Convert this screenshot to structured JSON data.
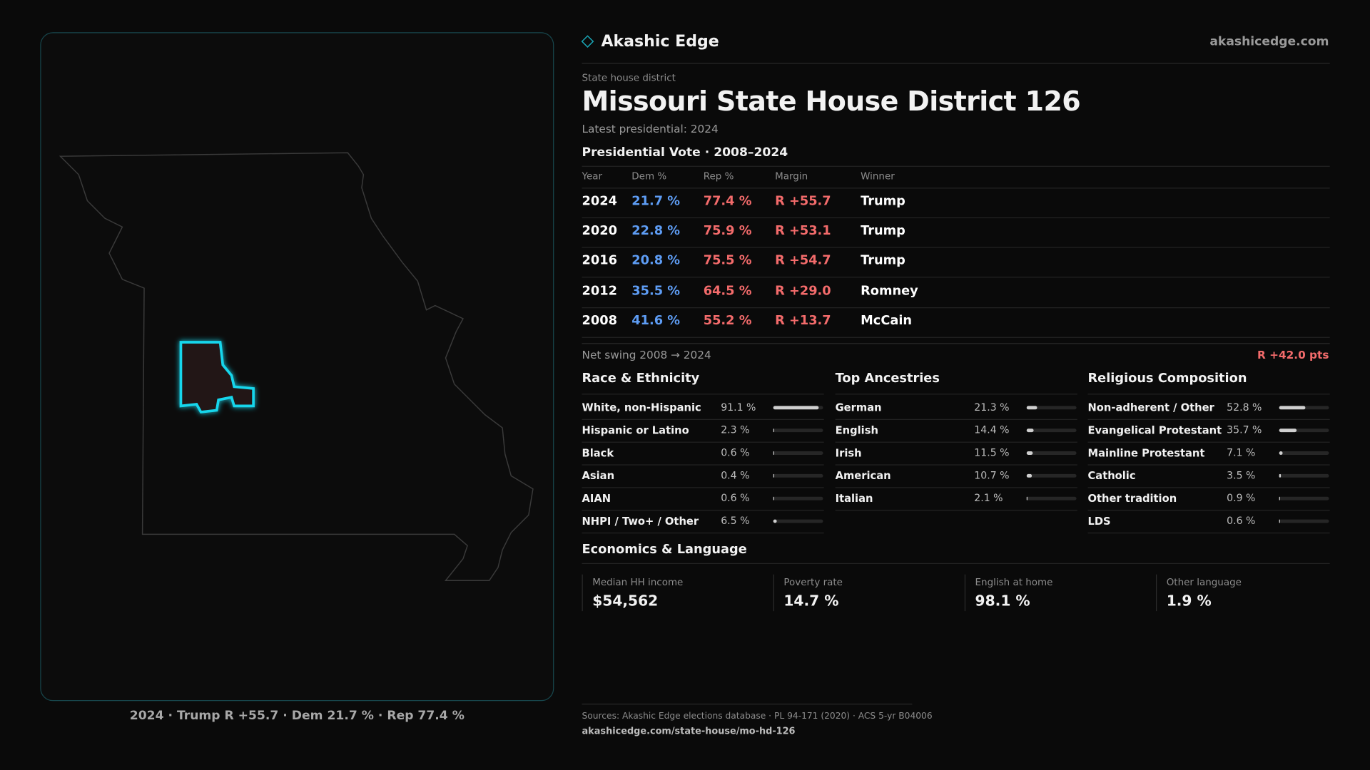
{
  "brand": {
    "name": "Akashic Edge",
    "site": "akashicedge.com"
  },
  "district": {
    "kicker": "State house district",
    "title": "Missouri State House District 126",
    "latest": "Latest presidential: 2024"
  },
  "presidential": {
    "title": "Presidential Vote · 2008–2024",
    "columns": [
      "Year",
      "Dem %",
      "Rep %",
      "Margin",
      "Winner"
    ],
    "rows": [
      [
        "2024",
        "21.7 %",
        "77.4 %",
        "R +55.7",
        "Trump"
      ],
      [
        "2020",
        "22.8 %",
        "75.9 %",
        "R +53.1",
        "Trump"
      ],
      [
        "2016",
        "20.8 %",
        "75.5 %",
        "R +54.7",
        "Trump"
      ],
      [
        "2012",
        "35.5 %",
        "64.5 %",
        "R +29.0",
        "Romney"
      ],
      [
        "2008",
        "41.6 %",
        "55.2 %",
        "R +13.7",
        "McCain"
      ]
    ],
    "swing_label": "Net swing 2008 → 2024",
    "swing_value": "R +42.0 pts"
  },
  "race": {
    "title": "Race & Ethnicity",
    "items": [
      {
        "name": "White, non-Hispanic",
        "value": 91.1,
        "label": "91.1 %"
      },
      {
        "name": "Hispanic or Latino",
        "value": 2.3,
        "label": "2.3 %"
      },
      {
        "name": "Black",
        "value": 0.6,
        "label": "0.6 %"
      },
      {
        "name": "Asian",
        "value": 0.4,
        "label": "0.4 %"
      },
      {
        "name": "AIAN",
        "value": 0.6,
        "label": "0.6 %"
      },
      {
        "name": "NHPI / Two+ / Other",
        "value": 6.5,
        "label": "6.5 %"
      }
    ]
  },
  "ancestry": {
    "title": "Top Ancestries",
    "items": [
      {
        "name": "German",
        "value": 21.3,
        "label": "21.3 %"
      },
      {
        "name": "English",
        "value": 14.4,
        "label": "14.4 %"
      },
      {
        "name": "Irish",
        "value": 11.5,
        "label": "11.5 %"
      },
      {
        "name": "American",
        "value": 10.7,
        "label": "10.7 %"
      },
      {
        "name": "Italian",
        "value": 2.1,
        "label": "2.1 %"
      }
    ]
  },
  "religion": {
    "title": "Religious Composition",
    "items": [
      {
        "name": "Non-adherent / Other",
        "value": 52.8,
        "label": "52.8 %"
      },
      {
        "name": "Evangelical Protestant",
        "value": 35.7,
        "label": "35.7 %"
      },
      {
        "name": "Mainline Protestant",
        "value": 7.1,
        "label": "7.1 %"
      },
      {
        "name": "Catholic",
        "value": 3.5,
        "label": "3.5 %"
      },
      {
        "name": "Other tradition",
        "value": 0.9,
        "label": "0.9 %"
      },
      {
        "name": "LDS",
        "value": 0.6,
        "label": "0.6 %"
      }
    ]
  },
  "economics": {
    "title": "Economics & Language",
    "stats": [
      {
        "label": "Median HH income",
        "value": "$54,562"
      },
      {
        "label": "Poverty rate",
        "value": "14.7 %"
      },
      {
        "label": "English at home",
        "value": "98.1 %"
      },
      {
        "label": "Other language",
        "value": "1.9 %"
      }
    ]
  },
  "map_caption": "2024 · Trump R +55.7 · Dem 21.7 % · Rep 77.4 %",
  "footer": {
    "sources": "Sources: Akashic Edge elections database · PL 94-171 (2020) · ACS 5-yr B04006",
    "url": "akashicedge.com/state-house/mo-hd-126"
  }
}
